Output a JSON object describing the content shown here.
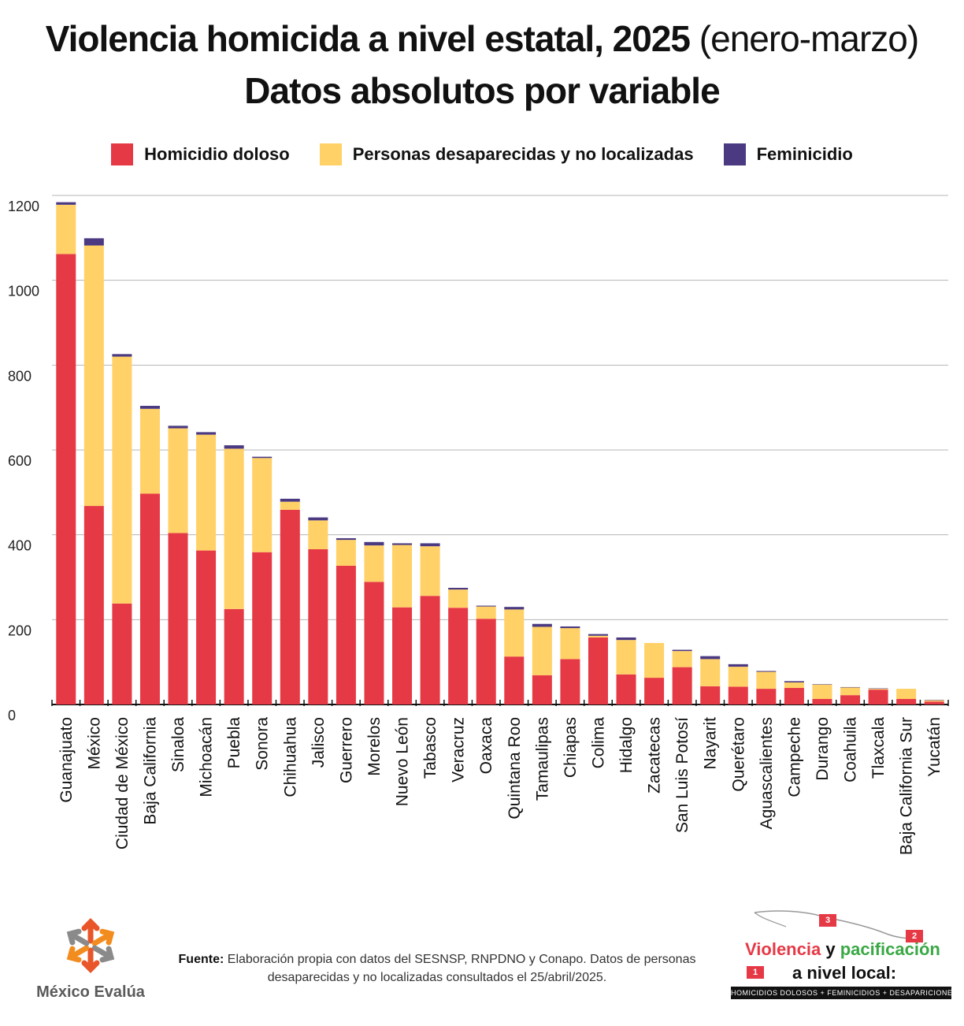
{
  "header": {
    "title_main": "Violencia homicida a nivel estatal, 2025",
    "title_period": "(enero-marzo)",
    "subtitle": "Datos absolutos por variable"
  },
  "colors": {
    "homicidio": "#E63946",
    "desaparecidas": "#FFD166",
    "feminicidio": "#4B3A82",
    "grid": "#b5b5b5",
    "axis": "#111111"
  },
  "chart_data": {
    "type": "bar",
    "stacked": true,
    "ylim": [
      0,
      1200
    ],
    "yticks": [
      0,
      200,
      400,
      600,
      800,
      1000,
      1200
    ],
    "grid": true,
    "legend_position": "top-center",
    "categories": [
      "Guanajuato",
      "México",
      "Ciudad de México",
      "Baja California",
      "Sinaloa",
      "Michoacán",
      "Puebla",
      "Sonora",
      "Chihuahua",
      "Jalisco",
      "Guerrero",
      "Morelos",
      "Nuevo León",
      "Tabasco",
      "Veracruz",
      "Oaxaca",
      "Quintana Roo",
      "Tamaulipas",
      "Chiapas",
      "Colima",
      "Hidalgo",
      "Zacatecas",
      "San Luis Potosí",
      "Nayarit",
      "Querétaro",
      "Aguascalientes",
      "Campeche",
      "Durango",
      "Coahuila",
      "Tlaxcala",
      "Baja California Sur",
      "Yucatán"
    ],
    "series": [
      {
        "name": "Homicidio doloso",
        "color": "#E63946",
        "values": [
          1062,
          468,
          238,
          497,
          404,
          363,
          225,
          359,
          459,
          366,
          327,
          289,
          229,
          256,
          228,
          202,
          113,
          69,
          107,
          158,
          71,
          63,
          88,
          43,
          42,
          37,
          39,
          13,
          22,
          35,
          13,
          7
        ]
      },
      {
        "name": "Personas desaparecidas y no localizadas",
        "color": "#FFD166",
        "values": [
          116,
          614,
          582,
          200,
          247,
          273,
          378,
          222,
          19,
          68,
          61,
          86,
          147,
          117,
          43,
          29,
          111,
          114,
          73,
          4,
          81,
          82,
          38,
          64,
          47,
          40,
          13,
          34,
          18,
          2,
          24,
          3
        ]
      },
      {
        "name": "Feminicidio",
        "color": "#4B3A82",
        "values": [
          6,
          17,
          6,
          7,
          6,
          6,
          8,
          3,
          7,
          7,
          4,
          8,
          4,
          7,
          4,
          2,
          6,
          7,
          4,
          4,
          6,
          0,
          3,
          7,
          6,
          2,
          3,
          1,
          1,
          1,
          0,
          1
        ]
      }
    ]
  },
  "footer": {
    "source_label": "Fuente:",
    "source_text": "Elaboración propia con datos del SESNSP, RNPDNO y Conapo. Datos de personas desaparecidas y no localizadas consultados el 25/abril/2025.",
    "left_logo_name": "México Evalúa",
    "right_logo_word1": "Violencia",
    "right_logo_word2": "y",
    "right_logo_word3": "pacificación",
    "right_logo_line2": "a nivel local:",
    "right_logo_bar": "HOMICIDIOS DOLOSOS + FEMINICIDIOS + DESAPARICIONES",
    "badge1": "1",
    "badge2": "2",
    "badge3": "3"
  }
}
